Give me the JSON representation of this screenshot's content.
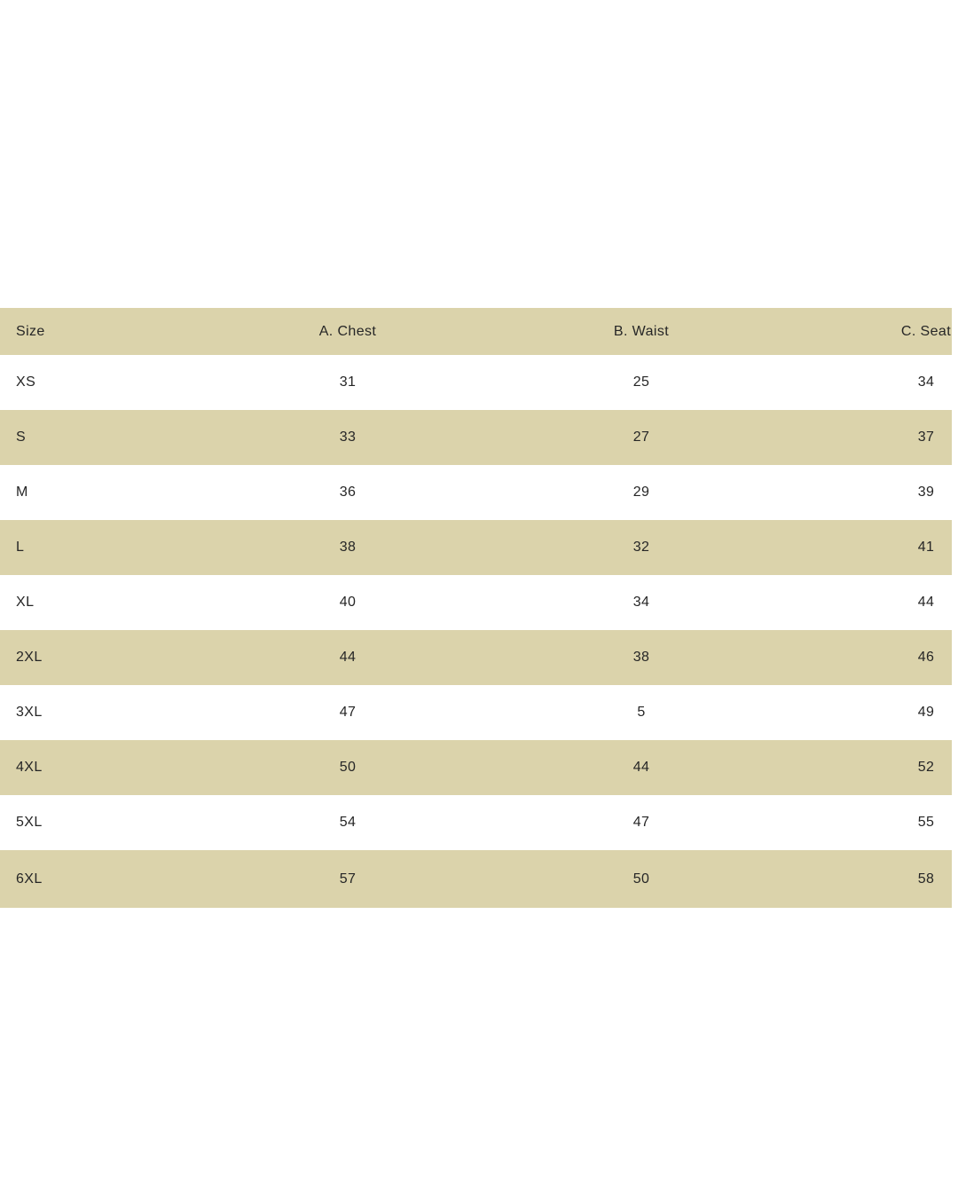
{
  "colors": {
    "row_stripe": "#dbd3ab",
    "background": "#ffffff",
    "text": "#262626"
  },
  "chart_data": {
    "type": "table",
    "columns": [
      "Size",
      "A. Chest",
      "B. Waist",
      "C. Seat"
    ],
    "rows": [
      [
        "XS",
        "31",
        "25",
        "34"
      ],
      [
        "S",
        "33",
        "27",
        "37"
      ],
      [
        "M",
        "36",
        "29",
        "39"
      ],
      [
        "L",
        "38",
        "32",
        "41"
      ],
      [
        "XL",
        "40",
        "34",
        "44"
      ],
      [
        "2XL",
        "44",
        "38",
        "46"
      ],
      [
        "3XL",
        "47",
        "5",
        "49"
      ],
      [
        "4XL",
        "50",
        "44",
        "52"
      ],
      [
        "5XL",
        "54",
        "47",
        "55"
      ],
      [
        "6XL",
        "57",
        "50",
        "58"
      ]
    ]
  }
}
